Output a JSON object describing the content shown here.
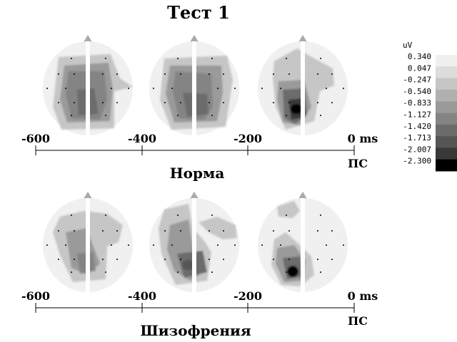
{
  "title": "Тест 1",
  "panels": [
    {
      "label": "Норма",
      "axis_ticks": [
        "-600",
        "-400",
        "-200",
        "0 ms"
      ],
      "axis_marker": "ПС",
      "maps": [
        "map-1",
        "map-2",
        "map-3"
      ]
    },
    {
      "label": "Шизофрения",
      "axis_ticks": [
        "-600",
        "-400",
        "-200",
        "0 ms"
      ],
      "axis_marker": "ПС",
      "maps": [
        "map-4",
        "map-5",
        "map-6"
      ]
    }
  ],
  "colorbar": {
    "unit": "uV",
    "levels": [
      "0.340",
      "0.047",
      "-0.247",
      "-0.540",
      "-0.833",
      "-1.127",
      "-1.420",
      "-1.713",
      "-2.007",
      "-2.300"
    ],
    "colors": [
      "#f0f0f0",
      "#dcdcdc",
      "#c6c6c6",
      "#b0b0b0",
      "#9a9a9a",
      "#848484",
      "#6c6c6c",
      "#555555",
      "#383838",
      "#000000"
    ]
  }
}
